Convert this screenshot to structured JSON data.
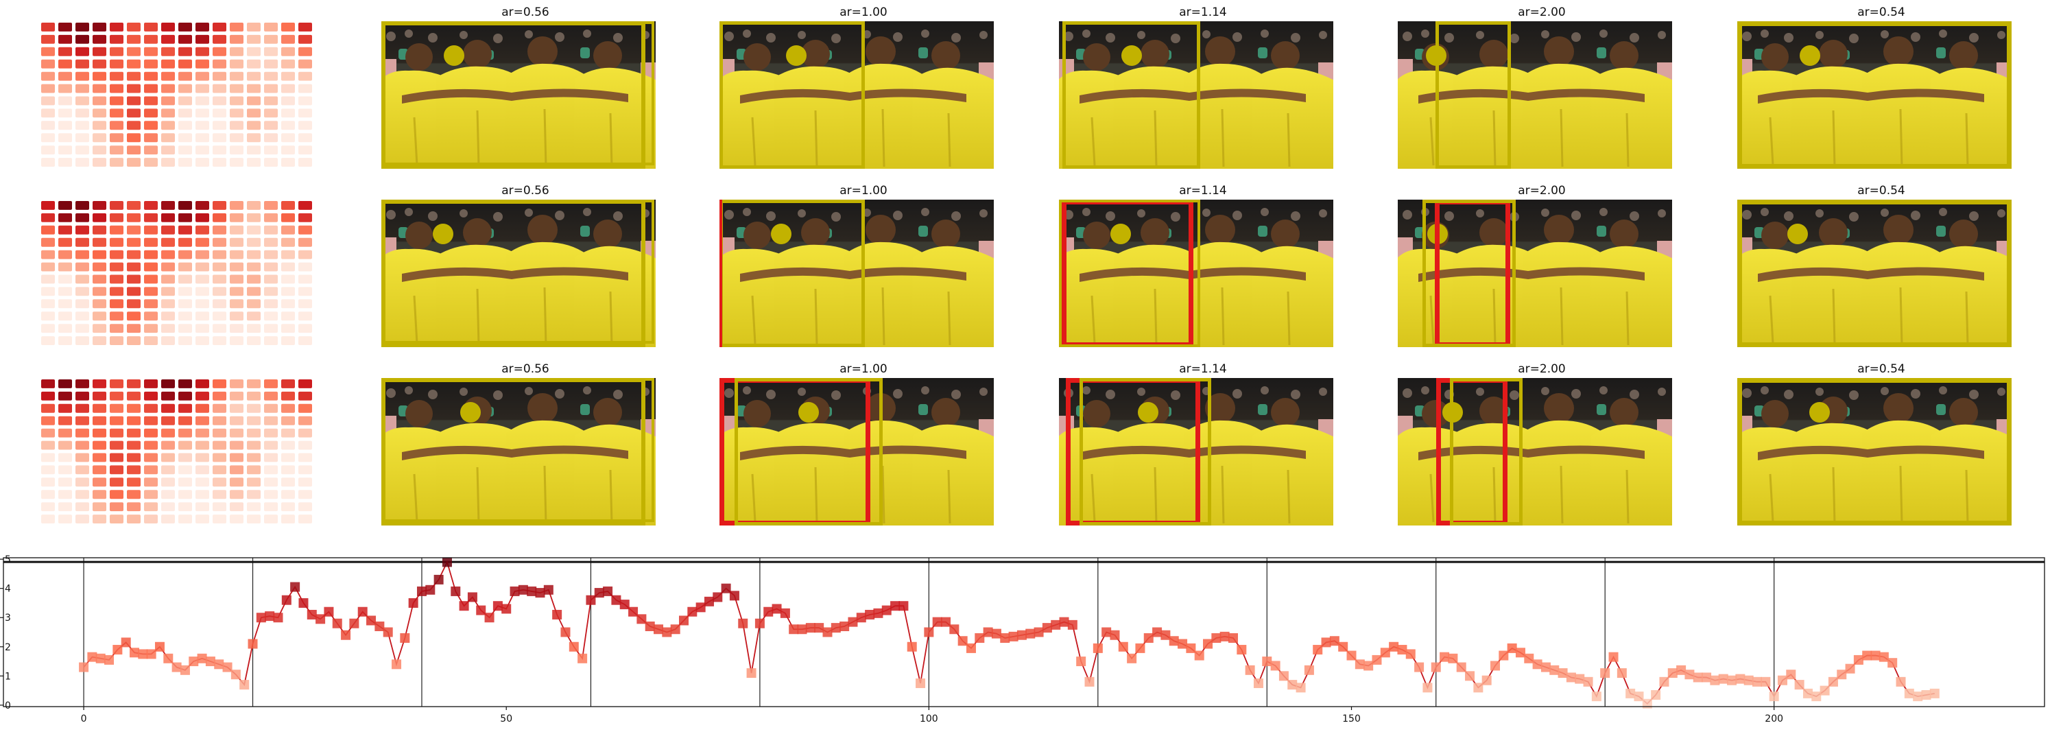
{
  "panels": {
    "titles": [
      "ar=0.56",
      "ar=1.00",
      "ar=1.14",
      "ar=2.00",
      "ar=0.54"
    ],
    "rows": 3,
    "box_colors": {
      "predicted": "#c2b200",
      "reference": "#e21a1a",
      "marker": "#c2b200"
    },
    "heatmap_grid": {
      "cols": 16,
      "rows": 12
    }
  },
  "chart_data": {
    "type": "line",
    "title": "",
    "xlabel": "",
    "ylabel": "",
    "xlim": [
      -9.5,
      232
    ],
    "ylim": [
      -0.05,
      5.05
    ],
    "xticks": [
      0,
      50,
      100,
      150,
      200
    ],
    "yticks": [
      0,
      1,
      2,
      3,
      4,
      5
    ],
    "separators_x": [
      0,
      20,
      40,
      60,
      80,
      100,
      120,
      140,
      160,
      180,
      200
    ],
    "series": [
      {
        "values": [
          1.3,
          1.65,
          1.6,
          1.55,
          1.9,
          2.15,
          1.8,
          1.75,
          1.75,
          2.0,
          1.6,
          1.3,
          1.2,
          1.5,
          1.6,
          1.5,
          1.4,
          1.3,
          1.05,
          0.7,
          2.1,
          3.0,
          3.05,
          3.0,
          3.6,
          4.05,
          3.5,
          3.1,
          2.95,
          3.2,
          2.8,
          2.4,
          2.8,
          3.2,
          2.9,
          2.7,
          2.5,
          1.4,
          2.3,
          3.5,
          3.9,
          3.95,
          4.3,
          4.9,
          3.9,
          3.4,
          3.7,
          3.25,
          3.0,
          3.4,
          3.3,
          3.9,
          3.95,
          3.9,
          3.85,
          3.95,
          3.1,
          2.5,
          2.0,
          1.6,
          3.6,
          3.85,
          3.9,
          3.6,
          3.45,
          3.2,
          2.95,
          2.7,
          2.6,
          2.5,
          2.6,
          2.9,
          3.2,
          3.35,
          3.55,
          3.7,
          4.0,
          3.75,
          2.8,
          1.1,
          2.8,
          3.2,
          3.3,
          3.15,
          2.6,
          2.6,
          2.65,
          2.65,
          2.5,
          2.65,
          2.7,
          2.85,
          3.0,
          3.1,
          3.15,
          3.25,
          3.4,
          3.4,
          2.0,
          0.75,
          2.5,
          2.85,
          2.85,
          2.6,
          2.2,
          1.95,
          2.3,
          2.5,
          2.45,
          2.3,
          2.35,
          2.4,
          2.45,
          2.5,
          2.65,
          2.75,
          2.85,
          2.75,
          1.5,
          0.8,
          1.95,
          2.5,
          2.4,
          2.0,
          1.6,
          1.95,
          2.3,
          2.5,
          2.4,
          2.2,
          2.1,
          1.95,
          1.7,
          2.1,
          2.3,
          2.35,
          2.3,
          1.9,
          1.2,
          0.75,
          1.5,
          1.35,
          1.0,
          0.7,
          0.6,
          1.2,
          1.9,
          2.15,
          2.2,
          2.0,
          1.7,
          1.4,
          1.35,
          1.55,
          1.8,
          2.0,
          1.9,
          1.75,
          1.3,
          0.6,
          1.3,
          1.65,
          1.6,
          1.3,
          1.0,
          0.6,
          0.85,
          1.35,
          1.7,
          1.95,
          1.8,
          1.6,
          1.4,
          1.3,
          1.2,
          1.1,
          0.95,
          0.9,
          0.8,
          0.3,
          1.1,
          1.65,
          1.1,
          0.4,
          0.3,
          0.05,
          0.35,
          0.8,
          1.1,
          1.2,
          1.05,
          0.95,
          0.95,
          0.85,
          0.9,
          0.85,
          0.9,
          0.85,
          0.8,
          0.8,
          0.3,
          0.85,
          1.05,
          0.7,
          0.4,
          0.3,
          0.5,
          0.8,
          1.05,
          1.25,
          1.55,
          1.7,
          1.7,
          1.65,
          1.45,
          0.8,
          0.4,
          0.3,
          0.35,
          0.4
        ]
      }
    ]
  }
}
